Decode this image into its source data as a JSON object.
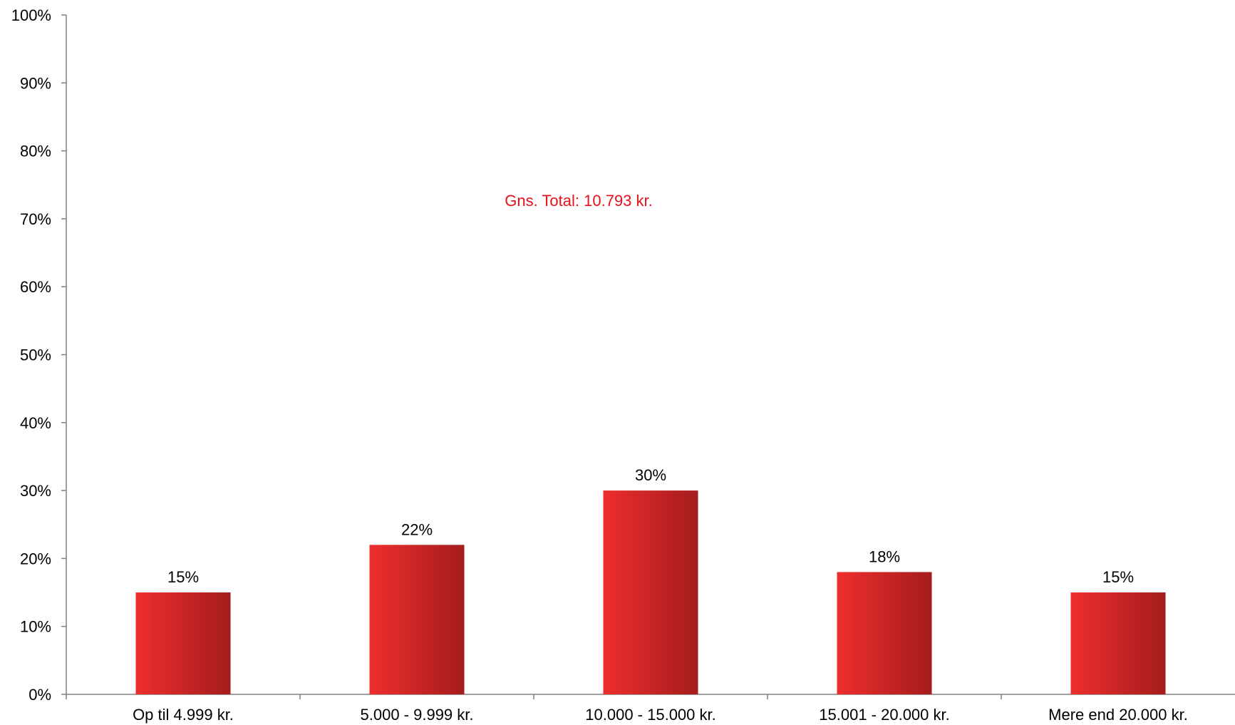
{
  "chart_data": {
    "type": "bar",
    "categories": [
      "Op til 4.999 kr.",
      "5.000 - 9.999 kr.",
      "10.000 - 15.000 kr.",
      "15.001 - 20.000 kr.",
      "Mere end 20.000 kr."
    ],
    "values": [
      15,
      22,
      30,
      18,
      15
    ],
    "data_labels": [
      "15%",
      "22%",
      "30%",
      "18%",
      "15%"
    ],
    "title": "",
    "xlabel": "",
    "ylabel": "",
    "ylim": [
      0,
      100
    ],
    "yticks": [
      0,
      10,
      20,
      30,
      40,
      50,
      60,
      70,
      80,
      90,
      100
    ],
    "ytick_labels": [
      "0%",
      "10%",
      "20%",
      "30%",
      "40%",
      "50%",
      "60%",
      "70%",
      "80%",
      "90%",
      "100%"
    ],
    "grid": false,
    "legend": "none",
    "annotation": "Gns. Total: 10.793 kr.",
    "colors": {
      "bar_light": "#ee2e2e",
      "bar_dark": "#a51c1c",
      "annotation": "#e8101a",
      "axis": "#808080"
    }
  }
}
